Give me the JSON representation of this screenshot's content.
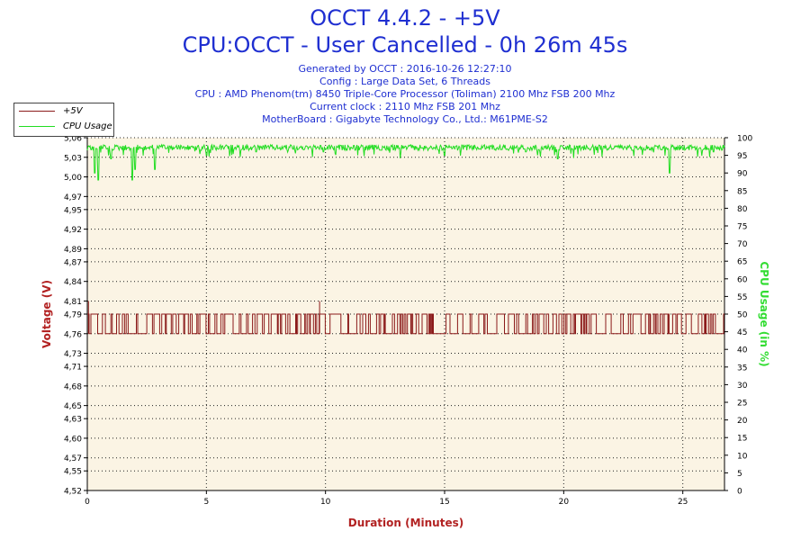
{
  "header": {
    "title": "OCCT 4.4.2 - +5V",
    "subtitle": "CPU:OCCT - User Cancelled - 0h 26m 45s",
    "info_lines": [
      "Generated by OCCT : 2016-10-26 12:27:10",
      "Config : Large Data Set, 6 Threads",
      "CPU : AMD Phenom(tm) 8450 Triple-Core Processor (Toliman) 2100 Mhz FSB 200 Mhz",
      "Current clock : 2110 Mhz FSB 201 Mhz",
      "MotherBoard : Gigabyte Technology Co., Ltd.: M61PME-S2"
    ]
  },
  "legend": {
    "items": [
      {
        "label": "+5V",
        "color": "#8b1a1a"
      },
      {
        "label": "CPU Usage",
        "color": "#22dd22"
      }
    ]
  },
  "chart_data": {
    "type": "line",
    "xlabel": "Duration (Minutes)",
    "ylabel_left": "Voltage (V)",
    "ylabel_right": "CPU Usage (in %)",
    "xlim": [
      0,
      26.75
    ],
    "x_ticks": [
      0,
      5,
      10,
      15,
      20,
      25
    ],
    "x_tick_labels": [
      "0",
      "5",
      "10",
      "15",
      "20",
      "25"
    ],
    "ylim_left": [
      4.52,
      5.06
    ],
    "y_left_ticks": [
      4.52,
      4.55,
      4.57,
      4.6,
      4.63,
      4.65,
      4.68,
      4.71,
      4.73,
      4.76,
      4.79,
      4.81,
      4.84,
      4.87,
      4.89,
      4.92,
      4.95,
      4.97,
      5.0,
      5.03,
      5.06
    ],
    "y_left_tick_labels": [
      "4,52",
      "4,55",
      "4,57",
      "4,60",
      "4,63",
      "4,65",
      "4,68",
      "4,71",
      "4,73",
      "4,76",
      "4,79",
      "4,81",
      "4,84",
      "4,87",
      "4,89",
      "4,92",
      "4,95",
      "4,97",
      "5,00",
      "5,03",
      "5,06"
    ],
    "ylim_right": [
      0,
      100
    ],
    "y_right_ticks": [
      0,
      5,
      10,
      15,
      20,
      25,
      30,
      35,
      40,
      45,
      50,
      55,
      60,
      65,
      70,
      75,
      80,
      85,
      90,
      95,
      100
    ],
    "grid": true,
    "legend_position": "top-left",
    "series": [
      {
        "name": "+5V",
        "axis": "left",
        "color": "#8b1a1a",
        "low": 4.76,
        "high": 4.79,
        "spikes": [
          {
            "x": 0.05,
            "y": 4.81
          },
          {
            "x": 9.75,
            "y": 4.81
          }
        ]
      },
      {
        "name": "CPU Usage",
        "axis": "right",
        "color": "#22dd22",
        "baseline": 98,
        "dips": [
          {
            "x": 0.3,
            "y": 90
          },
          {
            "x": 0.45,
            "y": 88
          },
          {
            "x": 1.0,
            "y": 94
          },
          {
            "x": 1.9,
            "y": 88
          },
          {
            "x": 2.0,
            "y": 91
          },
          {
            "x": 2.85,
            "y": 91
          },
          {
            "x": 5.0,
            "y": 95
          },
          {
            "x": 7.1,
            "y": 96
          },
          {
            "x": 9.9,
            "y": 96
          },
          {
            "x": 15.0,
            "y": 95
          },
          {
            "x": 18.4,
            "y": 96
          },
          {
            "x": 19.75,
            "y": 94
          },
          {
            "x": 24.45,
            "y": 90
          },
          {
            "x": 26.3,
            "y": 96
          }
        ]
      }
    ]
  }
}
